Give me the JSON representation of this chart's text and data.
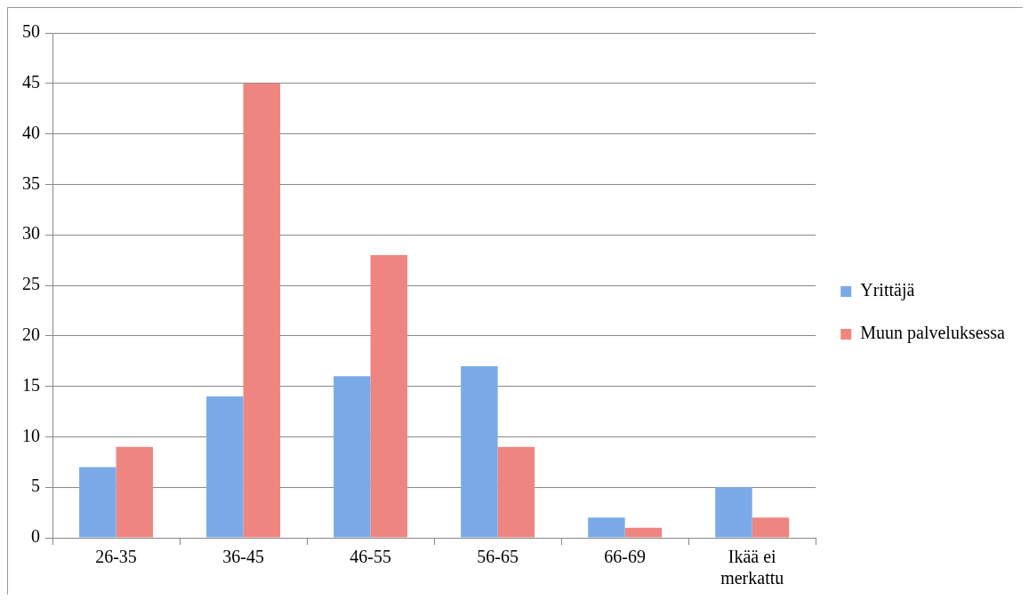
{
  "chart_data": {
    "type": "bar",
    "categories": [
      "26-35",
      "36-45",
      "46-55",
      "56-65",
      "66-69",
      "Ikää ei merkattu"
    ],
    "series": [
      {
        "name": "Yrittäjä",
        "color": "#7aaae8",
        "values": [
          7,
          14,
          16,
          17,
          2,
          5
        ]
      },
      {
        "name": "Muun palveluksessa",
        "color": "#ee8580",
        "values": [
          9,
          45,
          28,
          9,
          1,
          2
        ]
      }
    ],
    "ylim": [
      0,
      50
    ],
    "yticks": [
      0,
      5,
      10,
      15,
      20,
      25,
      30,
      35,
      40,
      45,
      50
    ],
    "grid": "y",
    "legend": "right"
  }
}
